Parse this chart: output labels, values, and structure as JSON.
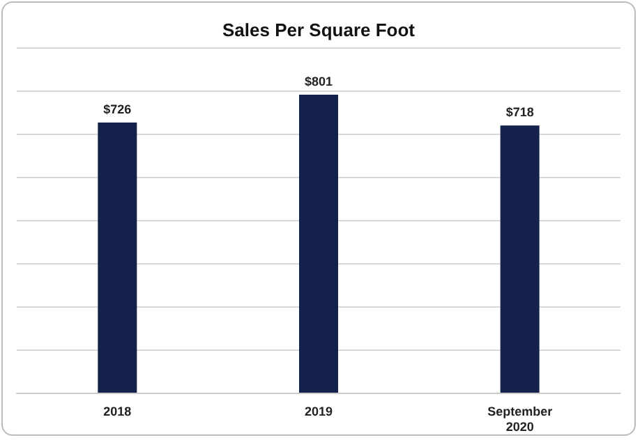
{
  "chart_data": {
    "type": "bar",
    "title": "Sales Per Square Foot",
    "categories": [
      "2018",
      "2019",
      "September\n2020"
    ],
    "values": [
      726,
      801,
      718
    ],
    "value_labels": [
      "$726",
      "$801",
      "$718"
    ],
    "color": "#14214a",
    "ylim": [
      0,
      928
    ],
    "yticks": [
      {
        "value": 0,
        "label": null
      },
      {
        "value": 116,
        "label": null
      },
      {
        "value": 232,
        "label": null
      },
      {
        "value": 348,
        "label": null
      },
      {
        "value": 464,
        "label": null
      },
      {
        "value": 580,
        "label": null
      },
      {
        "value": 696,
        "label": null
      },
      {
        "value": 812,
        "label": null
      },
      {
        "value": 928,
        "label": null
      }
    ],
    "grid": "y",
    "tick_labels": "x"
  }
}
